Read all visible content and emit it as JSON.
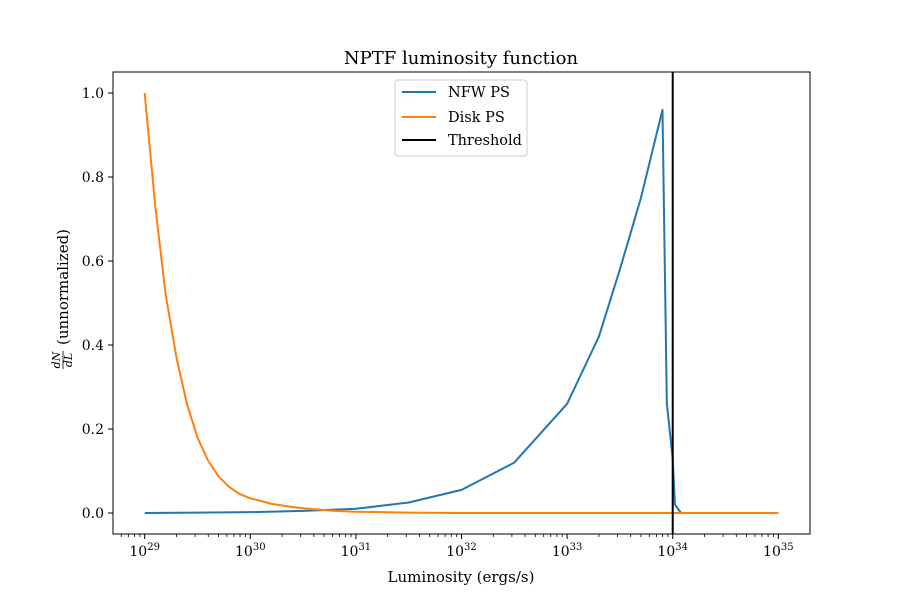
{
  "chart_data": {
    "type": "line",
    "title": "NPTF luminosity function",
    "xlabel": "Luminosity (ergs/s)",
    "ylabel": "(unnormalized)",
    "ylabel_fraction": {
      "numerator": "dN",
      "denominator": "dL"
    },
    "x_scale": "log",
    "xlim": [
      1e+29,
      1e+35
    ],
    "ylim": [
      -0.05,
      1.05
    ],
    "x_ticks": [
      {
        "exp": 29,
        "base": "10",
        "sup": "29"
      },
      {
        "exp": 30,
        "base": "10",
        "sup": "30"
      },
      {
        "exp": 31,
        "base": "10",
        "sup": "31"
      },
      {
        "exp": 32,
        "base": "10",
        "sup": "32"
      },
      {
        "exp": 33,
        "base": "10",
        "sup": "33"
      },
      {
        "exp": 34,
        "base": "10",
        "sup": "34"
      },
      {
        "exp": 35,
        "base": "10",
        "sup": "35"
      }
    ],
    "y_ticks": [
      {
        "value": 0.0,
        "label": "0.0"
      },
      {
        "value": 0.2,
        "label": "0.2"
      },
      {
        "value": 0.4,
        "label": "0.4"
      },
      {
        "value": 0.6,
        "label": "0.6"
      },
      {
        "value": 0.8,
        "label": "0.8"
      },
      {
        "value": 1.0,
        "label": "1.0"
      }
    ],
    "grid": false,
    "legend_placement": "top-center",
    "series": [
      {
        "name": "NFW PS",
        "color": "#1f77b4",
        "points": [
          [
            1e+29,
            0.0
          ],
          [
            3.16e+29,
            0.001
          ],
          [
            1e+30,
            0.002
          ],
          [
            3.16e+30,
            0.005
          ],
          [
            1e+31,
            0.01
          ],
          [
            3.16e+31,
            0.025
          ],
          [
            1e+32,
            0.055
          ],
          [
            3.16e+32,
            0.12
          ],
          [
            1e+33,
            0.26
          ],
          [
            2e+33,
            0.42
          ],
          [
            3.16e+33,
            0.58
          ],
          [
            5e+33,
            0.75
          ],
          [
            8e+33,
            0.96
          ],
          [
            8.8e+33,
            0.26
          ],
          [
            1e+34,
            0.13
          ],
          [
            1.05e+34,
            0.02
          ],
          [
            1.2e+34,
            0.0
          ],
          [
            1e+35,
            0.0
          ]
        ]
      },
      {
        "name": "Disk PS",
        "color": "#ff7f0e",
        "points": [
          [
            1e+29,
            1.0
          ],
          [
            1.26e+29,
            0.73
          ],
          [
            1.58e+29,
            0.52
          ],
          [
            2e+29,
            0.37
          ],
          [
            2.51e+29,
            0.26
          ],
          [
            3.16e+29,
            0.18
          ],
          [
            3.98e+29,
            0.125
          ],
          [
            5.01e+29,
            0.087
          ],
          [
            6.31e+29,
            0.062
          ],
          [
            7.94e+29,
            0.045
          ],
          [
            1e+30,
            0.035
          ],
          [
            1.58e+30,
            0.022
          ],
          [
            2.51e+30,
            0.014
          ],
          [
            3.98e+30,
            0.009
          ],
          [
            6.31e+30,
            0.005
          ],
          [
            1e+31,
            0.003
          ],
          [
            3.16e+31,
            0.001
          ],
          [
            1e+32,
            0.0
          ],
          [
            1e+35,
            0.0
          ]
        ]
      }
    ],
    "threshold": {
      "name": "Threshold",
      "x": 1e+34,
      "color": "#000000"
    }
  }
}
